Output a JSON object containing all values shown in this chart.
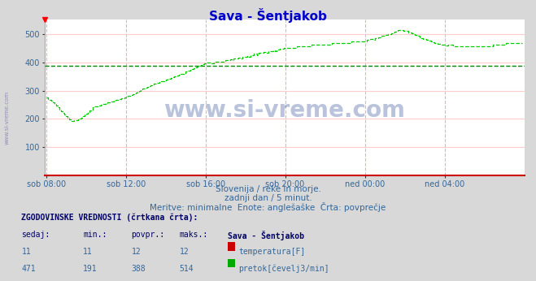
{
  "title": "Sava - Šentjakob",
  "bg_color": "#d8d8d8",
  "plot_bg_color": "#ffffff",
  "grid_color_v": "#ffaaaa",
  "grid_color_h": "#ffcccc",
  "avg_line_color": "#008800",
  "avg_line_value": 388,
  "ylim": [
    0,
    550
  ],
  "yticks": [
    100,
    200,
    300,
    400,
    500
  ],
  "xtick_positions": [
    0,
    48,
    96,
    144,
    192,
    240
  ],
  "xtick_labels": [
    "sob 08:00",
    "sob 12:00",
    "sob 16:00",
    "sob 20:00",
    "ned 00:00",
    "ned 04:00"
  ],
  "flow_color": "#00cc00",
  "watermark": "www.si-vreme.com",
  "subtitle1": "Slovenija / reke in morje.",
  "subtitle2": "zadnji dan / 5 minut.",
  "subtitle3": "Meritve: minimalne  Enote: anglešaške  Črta: povprečje",
  "legend_title": "ZGODOVINSKE VREDNOSTI (črtkana črta):",
  "legend_headers": [
    "sedaj:",
    "min.:",
    "povpr.:",
    "maks.:",
    "Sava - Šentjakob"
  ],
  "temp_row": [
    "11",
    "11",
    "12",
    "12",
    "temperatura[F]"
  ],
  "flow_row": [
    "471",
    "191",
    "388",
    "514",
    "pretok[čevelj3/min]"
  ],
  "sidebar_text": "www.si-vreme.com"
}
